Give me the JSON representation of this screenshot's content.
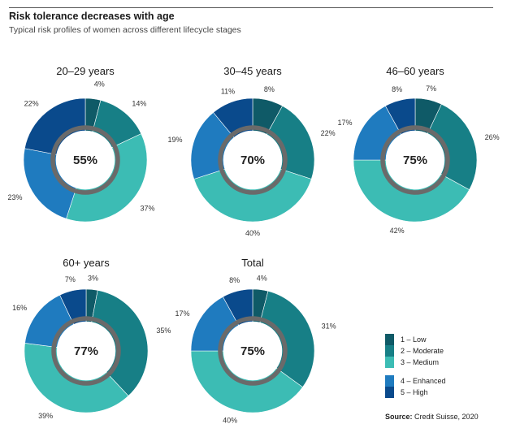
{
  "header": {
    "title": "Risk tolerance decreases with age",
    "subtitle": "Typical risk profiles of women across different lifecycle stages"
  },
  "colors": {
    "low": "#0f5a67",
    "moderate": "#177f86",
    "medium": "#3cbcb4",
    "enhanced": "#1f7bbf",
    "high": "#0a4a8c",
    "ring": "#6a6a6a"
  },
  "chart_data": {
    "type": "donut",
    "title": "Risk tolerance decreases with age",
    "subtitle": "Typical risk profiles of women across different lifecycle stages",
    "categories": [
      "1 – Low",
      "2 – Moderate",
      "3 – Medium",
      "4 – Enhanced",
      "5 – High"
    ],
    "charts": [
      {
        "name": "20–29 years",
        "center": "55%",
        "values": [
          4,
          14,
          37,
          23,
          22
        ],
        "labels": [
          "4%",
          "14%",
          "37%",
          "23%",
          "22%"
        ]
      },
      {
        "name": "30–45 years",
        "center": "70%",
        "values": [
          8,
          22,
          40,
          19,
          11
        ],
        "labels": [
          "8%",
          "22%",
          "40%",
          "19%",
          "11%"
        ]
      },
      {
        "name": "46–60 years",
        "center": "75%",
        "values": [
          7,
          26,
          42,
          17,
          8
        ],
        "labels": [
          "7%",
          "26%",
          "42%",
          "17%",
          "8%"
        ]
      },
      {
        "name": "60+ years",
        "center": "77%",
        "values": [
          3,
          35,
          39,
          16,
          7
        ],
        "labels": [
          "3%",
          "35%",
          "39%",
          "16%",
          "7%"
        ]
      },
      {
        "name": "Total",
        "center": "75%",
        "values": [
          4,
          31,
          40,
          17,
          8
        ],
        "labels": [
          "4%",
          "31%",
          "40%",
          "17%",
          "8%"
        ]
      }
    ]
  },
  "legend": {
    "items": [
      {
        "label": "1 – Low",
        "color": "#0f5a67"
      },
      {
        "label": "2 – Moderate",
        "color": "#177f86"
      },
      {
        "label": "3 – Medium",
        "color": "#3cbcb4"
      },
      {
        "label": "4 – Enhanced",
        "color": "#1f7bbf"
      },
      {
        "label": "5 – High",
        "color": "#0a4a8c"
      }
    ]
  },
  "source": {
    "label": "Source:",
    "text": "Credit Suisse, 2020"
  }
}
